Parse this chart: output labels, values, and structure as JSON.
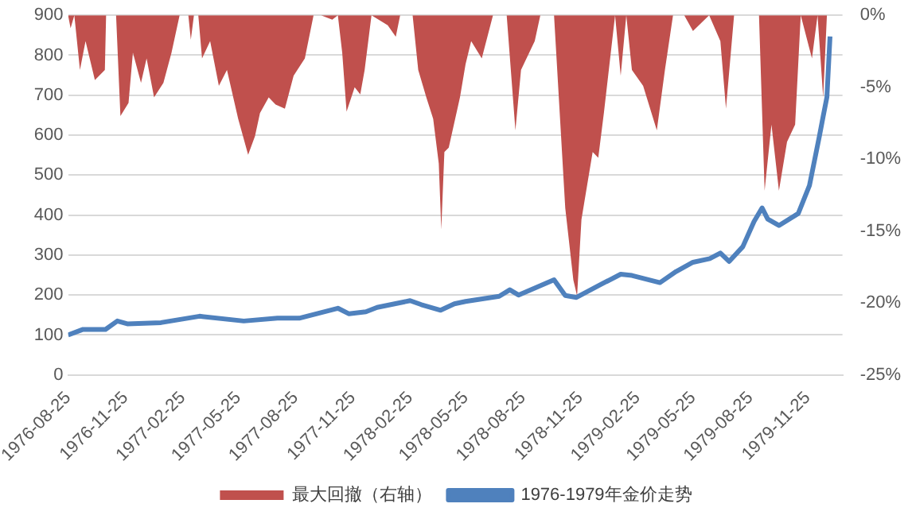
{
  "chart_data": {
    "type": "line",
    "xlim": [
      "1976-08-25",
      "1980-01-20"
    ],
    "xticks": [
      "1976-08-25",
      "1976-11-25",
      "1977-02-25",
      "1977-05-25",
      "1977-08-25",
      "1977-11-25",
      "1978-02-25",
      "1978-05-25",
      "1978-08-25",
      "1978-11-25",
      "1979-02-25",
      "1979-05-25",
      "1979-08-25",
      "1979-11-25"
    ],
    "ylim": [
      0,
      900
    ],
    "yticks": [
      0,
      100,
      200,
      300,
      400,
      500,
      600,
      700,
      800,
      900
    ],
    "y2lim": [
      -25,
      0
    ],
    "y2ticks": [
      {
        "value": -25,
        "label": "-25%"
      },
      {
        "value": -20,
        "label": "-20%"
      },
      {
        "value": -15,
        "label": "-15%"
      },
      {
        "value": -10,
        "label": "-10%"
      },
      {
        "value": -5,
        "label": "-5%"
      },
      {
        "value": 0,
        "label": "0%"
      }
    ],
    "grid": "y",
    "legend": "bottom",
    "marker": "none",
    "series": [
      {
        "name": "最大回撤（右轴）",
        "type": "area",
        "axis": "y2",
        "color": "#c0504d",
        "x": [
          "1976-08-25",
          "1976-08-29",
          "1976-09-04",
          "1976-09-13",
          "1976-09-22",
          "1976-10-07",
          "1976-10-23",
          "1976-10-25",
          "1976-11-10",
          "1976-11-17",
          "1976-11-30",
          "1976-12-07",
          "1976-12-20",
          "1976-12-29",
          "1977-01-10",
          "1977-01-25",
          "1977-02-07",
          "1977-02-20",
          "1977-03-06",
          "1977-03-10",
          "1977-03-15",
          "1977-03-22",
          "1977-03-28",
          "1977-04-10",
          "1977-04-24",
          "1977-05-07",
          "1977-05-25",
          "1977-06-10",
          "1977-06-21",
          "1977-06-29",
          "1977-07-13",
          "1977-07-24",
          "1977-08-08",
          "1977-08-22",
          "1977-09-09",
          "1977-09-23",
          "1977-10-05",
          "1977-10-23",
          "1977-11-01",
          "1977-11-08",
          "1977-11-15",
          "1977-11-28",
          "1977-12-07",
          "1977-12-14",
          "1977-12-25",
          "1978-01-20",
          "1978-02-02",
          "1978-02-09",
          "1978-03-01",
          "1978-03-10",
          "1978-03-23",
          "1978-04-03",
          "1978-04-12",
          "1978-04-16",
          "1978-04-21",
          "1978-04-28",
          "1978-05-16",
          "1978-05-25",
          "1978-06-03",
          "1978-06-20",
          "1978-07-08",
          "1978-07-30",
          "1978-08-13",
          "1978-08-22",
          "1978-09-13",
          "1978-09-22",
          "1978-10-14",
          "1978-11-01",
          "1978-11-14",
          "1978-11-20",
          "1978-11-27",
          "1978-12-15",
          "1978-12-24",
          "1979-01-02",
          "1979-01-20",
          "1979-01-29",
          "1979-02-07",
          "1979-02-16",
          "1979-03-06",
          "1979-03-28",
          "1979-04-10",
          "1979-04-23",
          "1979-05-11",
          "1979-05-25",
          "1979-06-20",
          "1979-07-08",
          "1979-07-17",
          "1979-07-30",
          "1979-09-08",
          "1979-09-17",
          "1979-09-28",
          "1979-10-10",
          "1979-10-23",
          "1979-11-05",
          "1979-11-14",
          "1979-12-02",
          "1979-12-11",
          "1979-12-20",
          "1979-12-26",
          "1979-12-31"
        ],
        "values": [
          0,
          -0.9,
          0,
          -3.8,
          -1.8,
          -4.5,
          -3.8,
          0,
          0,
          -7.0,
          -6.1,
          -2.6,
          -4.7,
          -3.0,
          -5.7,
          -4.7,
          -2.6,
          0,
          0,
          -1.7,
          0,
          0,
          -3.0,
          -1.8,
          -4.9,
          -3.8,
          -7.2,
          -9.7,
          -8.4,
          -6.8,
          -5.7,
          -6.2,
          -6.5,
          -4.2,
          -3.0,
          0,
          0,
          -0.3,
          0,
          -2.6,
          -6.7,
          -5.0,
          -5.5,
          -3.8,
          0,
          -0.7,
          -1.5,
          0,
          0,
          -3.8,
          -5.7,
          -7.2,
          -10.3,
          -14.9,
          -9.5,
          -9.2,
          -5.7,
          -3.4,
          -1.8,
          -3.0,
          0,
          0,
          -8.0,
          -3.8,
          -1.8,
          0,
          0,
          -13.4,
          -18.4,
          -19.5,
          -14.2,
          -9.5,
          -9.9,
          -6.8,
          0,
          -4.2,
          0,
          -3.8,
          -4.9,
          -8.0,
          -3.8,
          0,
          0,
          -1.1,
          0,
          -1.8,
          -6.5,
          0,
          0,
          -12.2,
          -7.6,
          -12.2,
          -8.8,
          -7.6,
          0,
          -3.0,
          0,
          -5.7,
          0,
          0
        ]
      },
      {
        "name": "1976-1979年金价走势",
        "color": "#4f81bd",
        "x": [
          "1976-08-25",
          "1976-09-18",
          "1976-10-24",
          "1976-11-12",
          "1976-11-28",
          "1977-01-21",
          "1977-03-24",
          "1977-06-03",
          "1977-07-27",
          "1977-08-31",
          "1977-11-01",
          "1977-11-19",
          "1977-12-16",
          "1978-01-03",
          "1978-02-25",
          "1978-03-15",
          "1978-04-15",
          "1978-05-07",
          "1978-05-25",
          "1978-07-18",
          "1978-08-04",
          "1978-08-18",
          "1978-10-14",
          "1978-11-01",
          "1978-11-19",
          "1978-12-25",
          "1979-01-29",
          "1979-02-16",
          "1979-04-02",
          "1979-04-28",
          "1979-05-25",
          "1979-06-21",
          "1979-07-08",
          "1979-07-22",
          "1979-08-13",
          "1979-08-31",
          "1979-09-13",
          "1979-09-22",
          "1979-10-10",
          "1979-11-10",
          "1979-11-28",
          "1979-12-14",
          "1979-12-20",
          "1979-12-26",
          "1979-12-31"
        ],
        "values": [
          100,
          114,
          114,
          135,
          128,
          131,
          147,
          135,
          142,
          142,
          167,
          153,
          158,
          169,
          186,
          176,
          162,
          178,
          184,
          197,
          213,
          200,
          238,
          199,
          194,
          224,
          252,
          249,
          231,
          259,
          282,
          291,
          305,
          284,
          321,
          384,
          418,
          390,
          374,
          404,
          474,
          598,
          647,
          695,
          847
        ]
      }
    ]
  }
}
